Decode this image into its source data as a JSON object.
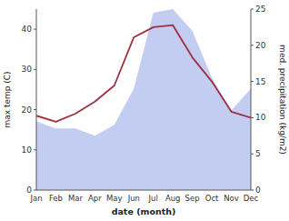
{
  "chart_data": {
    "type": "line",
    "x_label": "date (month)",
    "y_label": "max temp (C)",
    "y2_label": "med. precipitation (kg/m2)",
    "categories": [
      "Jan",
      "Feb",
      "Mar",
      "Apr",
      "May",
      "Jun",
      "Jul",
      "Aug",
      "Sep",
      "Oct",
      "Nov",
      "Dec"
    ],
    "series": [
      {
        "type": "area",
        "axis": "y2",
        "color": "#b8c4ee",
        "values": [
          9.5,
          8.5,
          8.5,
          7.5,
          9.0,
          14.0,
          24.5,
          25.0,
          22.0,
          15.5,
          11.0,
          14.0
        ]
      },
      {
        "type": "line",
        "color": "#9e3040",
        "values": [
          18.5,
          17.0,
          19.0,
          22.0,
          26.0,
          38.0,
          40.5,
          41.0,
          33.0,
          27.0,
          19.5,
          18.0
        ]
      }
    ],
    "ylim": [
      0,
      45
    ],
    "yticks": [
      0,
      10,
      20,
      30,
      40
    ],
    "y2lim": [
      0,
      25
    ],
    "y2ticks": [
      0,
      5,
      10,
      15,
      20,
      25
    ]
  }
}
